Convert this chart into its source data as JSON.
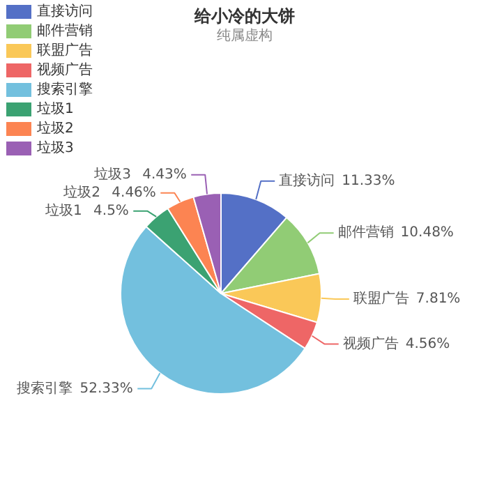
{
  "chart_data": {
    "type": "pie",
    "title": "给小冷的大饼",
    "subtitle": "纯属虚构",
    "categories": [
      "直接访问",
      "邮件营销",
      "联盟广告",
      "视频广告",
      "搜索引擎",
      "垃圾1",
      "垃圾2",
      "垃圾3"
    ],
    "values": [
      11.33,
      10.48,
      7.81,
      4.56,
      52.33,
      4.5,
      4.46,
      4.43
    ],
    "colors": [
      "#5470c6",
      "#91cc75",
      "#fac858",
      "#ee6666",
      "#73c0de",
      "#3ba272",
      "#fc8452",
      "#9a60b4"
    ],
    "value_labels": [
      "11.33%",
      "10.48%",
      "7.81%",
      "4.56%",
      "52.33%",
      "4.5%",
      "4.46%",
      "4.43%"
    ],
    "legend": "top left"
  }
}
